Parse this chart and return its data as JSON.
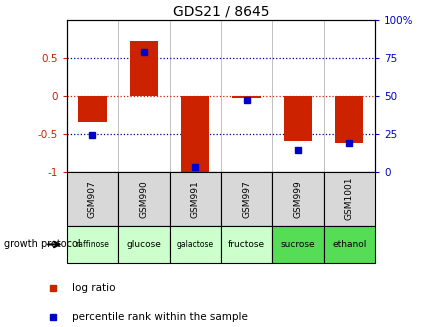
{
  "title": "GDS21 / 8645",
  "samples": [
    "GSM907",
    "GSM990",
    "GSM991",
    "GSM997",
    "GSM999",
    "GSM1001"
  ],
  "conditions": [
    "raffinose",
    "glucose",
    "galactose",
    "fructose",
    "sucrose",
    "ethanol"
  ],
  "condition_colors": [
    "#ccffcc",
    "#ccffcc",
    "#ccffcc",
    "#ccffcc",
    "#55dd55",
    "#55dd55"
  ],
  "log_ratio": [
    -0.35,
    0.72,
    -1.0,
    -0.03,
    -0.6,
    -0.62
  ],
  "percentile_rank": [
    24,
    79,
    3,
    47,
    14,
    19
  ],
  "ylim_left": [
    -1.0,
    1.0
  ],
  "ylim_right": [
    0,
    100
  ],
  "bar_color": "#cc2200",
  "dot_color": "#0000cc",
  "zero_line_color": "#cc2200",
  "dotted_line_color": "#000080",
  "background_color": "#ffffff",
  "label_log_ratio": "log ratio",
  "label_percentile": "percentile rank within the sample",
  "growth_protocol_label": "growth protocol",
  "left_yticks": [
    -1,
    -0.5,
    0,
    0.5
  ],
  "left_yticklabels": [
    "-1",
    "-0.5",
    "0",
    "0.5"
  ],
  "right_yticks": [
    0,
    25,
    50,
    75,
    100
  ],
  "right_yticklabels": [
    "0",
    "25",
    "50",
    "75",
    "100%"
  ]
}
